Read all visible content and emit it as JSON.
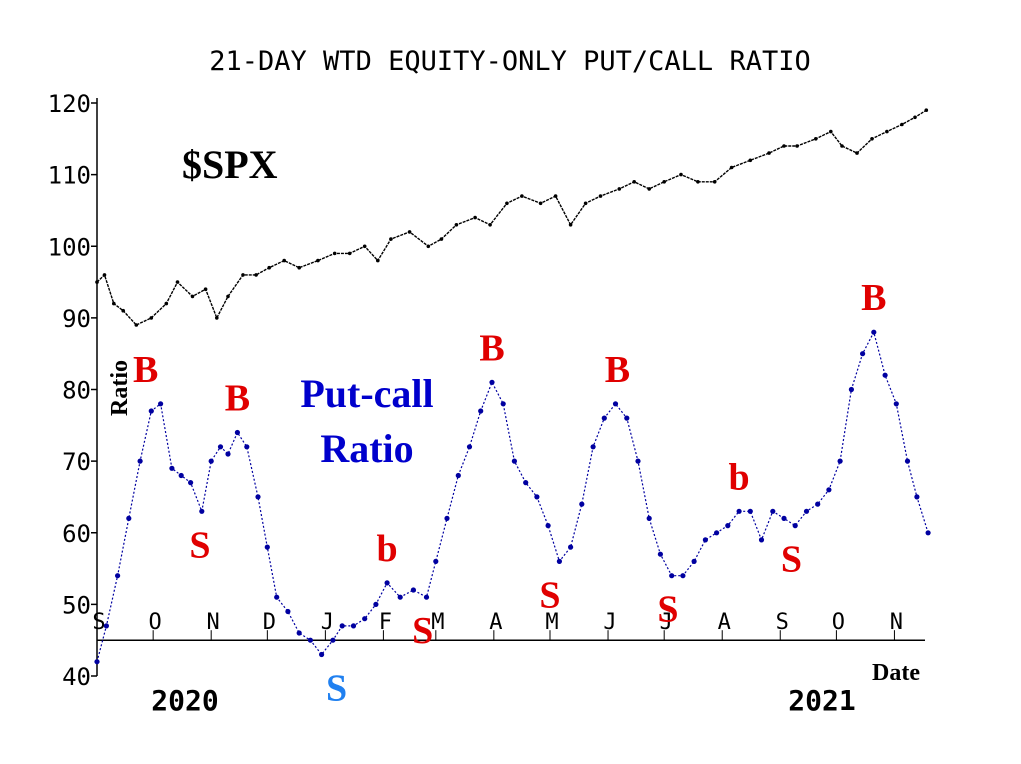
{
  "chart_data": {
    "type": "line",
    "title": "21-DAY WTD EQUITY-ONLY PUT/CALL RATIO",
    "ylabel": "Ratio",
    "xlabel": "Date",
    "ylim": [
      40,
      120
    ],
    "yticks": [
      40,
      50,
      60,
      70,
      80,
      90,
      100,
      110,
      120
    ],
    "xlim": [
      "2020-09-01",
      "2021-11-20"
    ],
    "month_ticks": [
      {
        "label": "S",
        "date": "2020-09-01"
      },
      {
        "label": "O",
        "date": "2020-10-01"
      },
      {
        "label": "N",
        "date": "2020-11-01"
      },
      {
        "label": "D",
        "date": "2020-12-01"
      },
      {
        "label": "J",
        "date": "2021-01-01"
      },
      {
        "label": "F",
        "date": "2021-02-01"
      },
      {
        "label": "M",
        "date": "2021-03-01"
      },
      {
        "label": "A",
        "date": "2021-04-01"
      },
      {
        "label": "M",
        "date": "2021-05-01"
      },
      {
        "label": "J",
        "date": "2021-06-01"
      },
      {
        "label": "J",
        "date": "2021-07-01"
      },
      {
        "label": "A",
        "date": "2021-08-01"
      },
      {
        "label": "S",
        "date": "2021-09-01"
      },
      {
        "label": "O",
        "date": "2021-10-01"
      },
      {
        "label": "N",
        "date": "2021-11-01"
      }
    ],
    "year_labels": [
      {
        "label": "2020",
        "date": "2020-10-15"
      },
      {
        "label": "2021",
        "date": "2021-10-15"
      }
    ],
    "grid": false,
    "series": [
      {
        "name": "$SPX",
        "color": "#000000",
        "style": "dotted-line",
        "x": [
          "2020-09-01",
          "2020-09-05",
          "2020-09-10",
          "2020-09-15",
          "2020-09-22",
          "2020-09-30",
          "2020-10-08",
          "2020-10-14",
          "2020-10-22",
          "2020-10-29",
          "2020-11-04",
          "2020-11-10",
          "2020-11-18",
          "2020-11-25",
          "2020-12-02",
          "2020-12-10",
          "2020-12-18",
          "2020-12-28",
          "2021-01-06",
          "2021-01-14",
          "2021-01-22",
          "2021-01-29",
          "2021-02-05",
          "2021-02-15",
          "2021-02-25",
          "2021-03-04",
          "2021-03-12",
          "2021-03-22",
          "2021-03-30",
          "2021-04-08",
          "2021-04-16",
          "2021-04-26",
          "2021-05-04",
          "2021-05-12",
          "2021-05-20",
          "2021-05-28",
          "2021-06-07",
          "2021-06-15",
          "2021-06-23",
          "2021-07-01",
          "2021-07-10",
          "2021-07-19",
          "2021-07-28",
          "2021-08-06",
          "2021-08-16",
          "2021-08-26",
          "2021-09-03",
          "2021-09-10",
          "2021-09-20",
          "2021-09-28",
          "2021-10-04",
          "2021-10-12",
          "2021-10-20",
          "2021-10-28",
          "2021-11-05",
          "2021-11-12",
          "2021-11-18"
        ],
        "values": [
          95,
          96,
          92,
          91,
          89,
          90,
          92,
          95,
          93,
          94,
          90,
          93,
          96,
          96,
          97,
          98,
          97,
          98,
          99,
          99,
          100,
          98,
          101,
          102,
          100,
          101,
          103,
          104,
          103,
          106,
          107,
          106,
          107,
          103,
          106,
          107,
          108,
          109,
          108,
          109,
          110,
          109,
          109,
          111,
          112,
          113,
          114,
          114,
          115,
          116,
          114,
          113,
          115,
          116,
          117,
          118,
          119
        ]
      },
      {
        "name": "Put-call Ratio",
        "color": "#0000a0",
        "style": "dotted-line",
        "x": [
          "2020-09-01",
          "2020-09-06",
          "2020-09-12",
          "2020-09-18",
          "2020-09-24",
          "2020-09-30",
          "2020-10-05",
          "2020-10-11",
          "2020-10-16",
          "2020-10-21",
          "2020-10-27",
          "2020-11-01",
          "2020-11-06",
          "2020-11-10",
          "2020-11-15",
          "2020-11-20",
          "2020-11-26",
          "2020-12-01",
          "2020-12-06",
          "2020-12-12",
          "2020-12-18",
          "2020-12-24",
          "2020-12-30",
          "2021-01-05",
          "2021-01-10",
          "2021-01-16",
          "2021-01-22",
          "2021-01-28",
          "2021-02-03",
          "2021-02-10",
          "2021-02-17",
          "2021-02-24",
          "2021-03-01",
          "2021-03-07",
          "2021-03-13",
          "2021-03-19",
          "2021-03-25",
          "2021-03-31",
          "2021-04-06",
          "2021-04-12",
          "2021-04-18",
          "2021-04-24",
          "2021-04-30",
          "2021-05-06",
          "2021-05-12",
          "2021-05-18",
          "2021-05-24",
          "2021-05-30",
          "2021-06-05",
          "2021-06-11",
          "2021-06-17",
          "2021-06-23",
          "2021-06-29",
          "2021-07-05",
          "2021-07-11",
          "2021-07-17",
          "2021-07-23",
          "2021-07-29",
          "2021-08-04",
          "2021-08-10",
          "2021-08-16",
          "2021-08-22",
          "2021-08-28",
          "2021-09-03",
          "2021-09-09",
          "2021-09-15",
          "2021-09-21",
          "2021-09-27",
          "2021-10-03",
          "2021-10-09",
          "2021-10-15",
          "2021-10-21",
          "2021-10-27",
          "2021-11-02",
          "2021-11-08",
          "2021-11-13",
          "2021-11-19"
        ],
        "values": [
          42,
          47,
          54,
          62,
          70,
          77,
          78,
          69,
          68,
          67,
          63,
          70,
          72,
          71,
          74,
          72,
          65,
          58,
          51,
          49,
          46,
          45,
          43,
          45,
          47,
          47,
          48,
          50,
          53,
          51,
          52,
          51,
          56,
          62,
          68,
          72,
          77,
          81,
          78,
          70,
          67,
          65,
          61,
          56,
          58,
          64,
          72,
          76,
          78,
          76,
          70,
          62,
          57,
          54,
          54,
          56,
          59,
          60,
          61,
          63,
          63,
          59,
          63,
          62,
          61,
          63,
          64,
          66,
          70,
          80,
          85,
          88,
          82,
          78,
          70,
          65,
          60
        ]
      }
    ],
    "annotations": [
      {
        "text": "$SPX",
        "color": "#000000"
      },
      {
        "text": "Put-call",
        "color": "#0000cc"
      },
      {
        "text": "Ratio",
        "color": "#0000cc"
      },
      {
        "text": "B",
        "color": "#e00000",
        "date": "2020-09-27",
        "value": 78
      },
      {
        "text": "S",
        "color": "#e00000",
        "date": "2020-10-26",
        "value": 63
      },
      {
        "text": "B",
        "color": "#e00000",
        "date": "2020-11-15",
        "value": 74
      },
      {
        "text": "S",
        "color": "#2080f0",
        "date": "2021-01-07",
        "value": 43
      },
      {
        "text": "b",
        "color": "#e00000",
        "date": "2021-02-03",
        "value": 53
      },
      {
        "text": "S",
        "color": "#e00000",
        "date": "2021-02-22",
        "value": 51
      },
      {
        "text": "B",
        "color": "#e00000",
        "date": "2021-03-31",
        "value": 81
      },
      {
        "text": "S",
        "color": "#e00000",
        "date": "2021-05-01",
        "value": 56
      },
      {
        "text": "B",
        "color": "#e00000",
        "date": "2021-06-06",
        "value": 78
      },
      {
        "text": "S",
        "color": "#e00000",
        "date": "2021-07-03",
        "value": 54
      },
      {
        "text": "b",
        "color": "#e00000",
        "date": "2021-08-10",
        "value": 63
      },
      {
        "text": "S",
        "color": "#e00000",
        "date": "2021-09-07",
        "value": 61
      },
      {
        "text": "B",
        "color": "#e00000",
        "date": "2021-10-21",
        "value": 88
      }
    ]
  }
}
